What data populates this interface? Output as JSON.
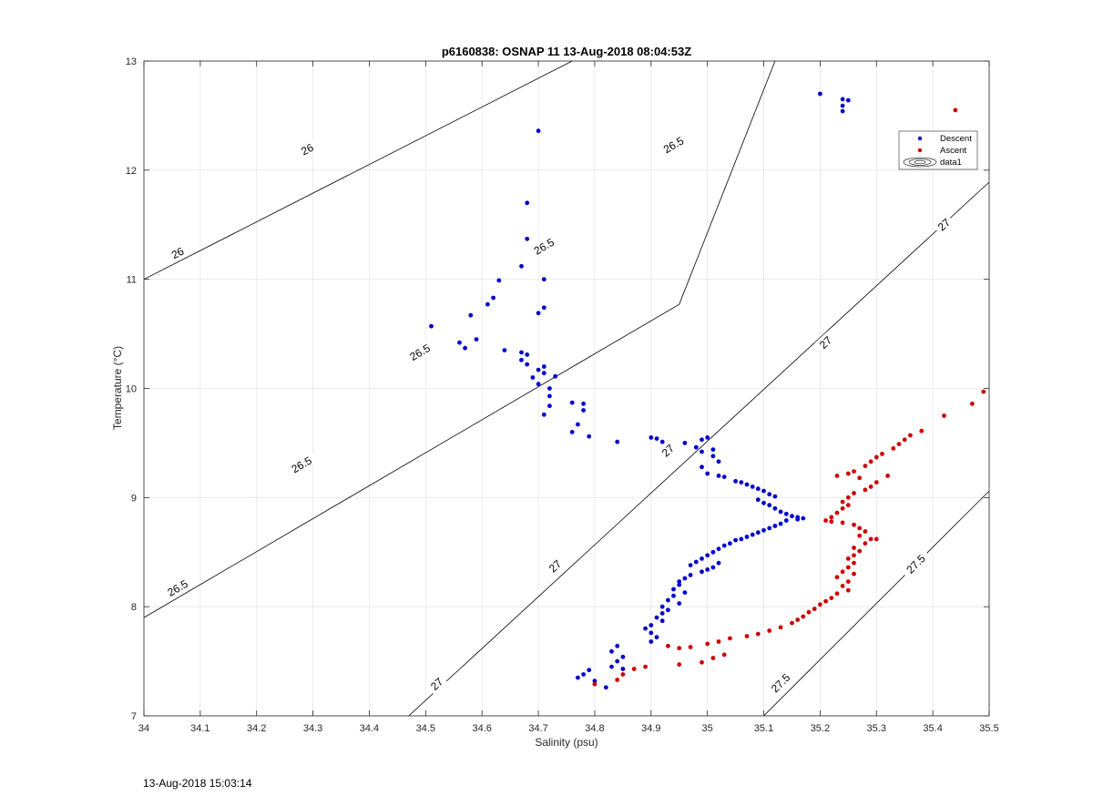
{
  "chart_data": {
    "type": "scatter",
    "title": "p6160838: OSNAP 11 13-Aug-2018 08:04:53Z",
    "xlabel": "Salinity (psu)",
    "ylabel": "Temperature (°C)",
    "xlim": [
      34,
      35.5
    ],
    "ylim": [
      7,
      13
    ],
    "x_ticks": [
      "34",
      "34.1",
      "34.2",
      "34.3",
      "34.4",
      "34.5",
      "34.6",
      "34.7",
      "34.8",
      "34.9",
      "35",
      "35.1",
      "35.2",
      "35.3",
      "35.4",
      "35.5"
    ],
    "y_ticks": [
      "7",
      "8",
      "9",
      "10",
      "11",
      "12",
      "13"
    ],
    "grid": true,
    "legend_placement": "top-right",
    "legend": [
      "Descent",
      "Ascent",
      "data1"
    ],
    "footer_timestamp": "13-Aug-2018 15:03:14",
    "series": [
      {
        "name": "Descent",
        "color": "#0000cc",
        "points": [
          [
            34.7,
            12.36
          ],
          [
            35.2,
            12.7
          ],
          [
            35.24,
            12.65
          ],
          [
            35.25,
            12.64
          ],
          [
            35.24,
            12.59
          ],
          [
            35.24,
            12.54
          ],
          [
            34.68,
            11.7
          ],
          [
            34.68,
            11.37
          ],
          [
            34.67,
            11.12
          ],
          [
            34.63,
            10.99
          ],
          [
            34.71,
            11.0
          ],
          [
            34.62,
            10.83
          ],
          [
            34.61,
            10.77
          ],
          [
            34.71,
            10.74
          ],
          [
            34.7,
            10.69
          ],
          [
            34.58,
            10.67
          ],
          [
            34.51,
            10.57
          ],
          [
            34.59,
            10.45
          ],
          [
            34.56,
            10.42
          ],
          [
            34.57,
            10.37
          ],
          [
            34.64,
            10.35
          ],
          [
            34.67,
            10.33
          ],
          [
            34.68,
            10.31
          ],
          [
            34.67,
            10.26
          ],
          [
            34.68,
            10.22
          ],
          [
            34.71,
            10.2
          ],
          [
            34.7,
            10.17
          ],
          [
            34.71,
            10.14
          ],
          [
            34.73,
            10.11
          ],
          [
            34.69,
            10.1
          ],
          [
            34.7,
            10.04
          ],
          [
            34.72,
            10.0
          ],
          [
            34.72,
            9.93
          ],
          [
            34.76,
            9.87
          ],
          [
            34.78,
            9.86
          ],
          [
            34.72,
            9.84
          ],
          [
            34.78,
            9.8
          ],
          [
            34.71,
            9.76
          ],
          [
            34.77,
            9.67
          ],
          [
            34.76,
            9.6
          ],
          [
            34.79,
            9.56
          ],
          [
            34.84,
            9.51
          ],
          [
            34.9,
            9.55
          ],
          [
            34.91,
            9.54
          ],
          [
            34.92,
            9.51
          ],
          [
            34.96,
            9.5
          ],
          [
            34.99,
            9.53
          ],
          [
            35.0,
            9.55
          ],
          [
            34.98,
            9.46
          ],
          [
            35.01,
            9.44
          ],
          [
            34.99,
            9.42
          ],
          [
            35.01,
            9.38
          ],
          [
            35.02,
            9.33
          ],
          [
            34.99,
            9.28
          ],
          [
            35.0,
            9.22
          ],
          [
            35.02,
            9.2
          ],
          [
            35.03,
            9.19
          ],
          [
            35.05,
            9.15
          ],
          [
            35.06,
            9.14
          ],
          [
            35.07,
            9.12
          ],
          [
            35.08,
            9.1
          ],
          [
            35.09,
            9.08
          ],
          [
            35.1,
            9.06
          ],
          [
            35.11,
            9.03
          ],
          [
            35.12,
            9.01
          ],
          [
            35.09,
            8.98
          ],
          [
            35.1,
            8.95
          ],
          [
            35.11,
            8.93
          ],
          [
            35.12,
            8.9
          ],
          [
            35.13,
            8.87
          ],
          [
            35.14,
            8.85
          ],
          [
            35.15,
            8.83
          ],
          [
            35.16,
            8.82
          ],
          [
            35.17,
            8.81
          ],
          [
            35.16,
            8.8
          ],
          [
            35.14,
            8.79
          ],
          [
            35.13,
            8.76
          ],
          [
            35.12,
            8.74
          ],
          [
            35.11,
            8.72
          ],
          [
            35.1,
            8.7
          ],
          [
            35.09,
            8.68
          ],
          [
            35.08,
            8.66
          ],
          [
            35.07,
            8.64
          ],
          [
            35.06,
            8.62
          ],
          [
            35.05,
            8.61
          ],
          [
            35.04,
            8.58
          ],
          [
            35.03,
            8.56
          ],
          [
            35.02,
            8.53
          ],
          [
            35.01,
            8.5
          ],
          [
            35.0,
            8.47
          ],
          [
            34.99,
            8.44
          ],
          [
            34.98,
            8.41
          ],
          [
            34.97,
            8.38
          ],
          [
            35.02,
            8.4
          ],
          [
            35.01,
            8.36
          ],
          [
            35.0,
            8.34
          ],
          [
            34.99,
            8.32
          ],
          [
            34.97,
            8.29
          ],
          [
            34.96,
            8.26
          ],
          [
            34.95,
            8.23
          ],
          [
            34.95,
            8.2
          ],
          [
            34.94,
            8.16
          ],
          [
            34.96,
            8.13
          ],
          [
            34.94,
            8.1
          ],
          [
            34.93,
            8.06
          ],
          [
            34.95,
            8.03
          ],
          [
            34.92,
            8.0
          ],
          [
            34.93,
            7.97
          ],
          [
            34.92,
            7.94
          ],
          [
            34.91,
            7.9
          ],
          [
            34.92,
            7.87
          ],
          [
            34.9,
            7.83
          ],
          [
            34.89,
            7.8
          ],
          [
            34.9,
            7.76
          ],
          [
            34.91,
            7.72
          ],
          [
            34.9,
            7.68
          ],
          [
            34.84,
            7.64
          ],
          [
            34.83,
            7.59
          ],
          [
            34.85,
            7.54
          ],
          [
            34.84,
            7.5
          ],
          [
            34.83,
            7.45
          ],
          [
            34.85,
            7.43
          ],
          [
            34.79,
            7.42
          ],
          [
            34.78,
            7.38
          ],
          [
            34.77,
            7.35
          ],
          [
            34.8,
            7.32
          ],
          [
            34.82,
            7.26
          ]
        ]
      },
      {
        "name": "Ascent",
        "color": "#cc0000",
        "points": [
          [
            35.44,
            12.55
          ],
          [
            35.49,
            9.97
          ],
          [
            35.47,
            9.86
          ],
          [
            35.42,
            9.75
          ],
          [
            35.38,
            9.61
          ],
          [
            35.36,
            9.57
          ],
          [
            35.35,
            9.53
          ],
          [
            35.34,
            9.49
          ],
          [
            35.33,
            9.45
          ],
          [
            35.31,
            9.4
          ],
          [
            35.3,
            9.37
          ],
          [
            35.29,
            9.33
          ],
          [
            35.28,
            9.29
          ],
          [
            35.26,
            9.24
          ],
          [
            35.25,
            9.22
          ],
          [
            35.23,
            9.2
          ],
          [
            35.27,
            9.18
          ],
          [
            35.32,
            9.2
          ],
          [
            35.3,
            9.14
          ],
          [
            35.29,
            9.1
          ],
          [
            35.28,
            9.07
          ],
          [
            35.26,
            9.04
          ],
          [
            35.25,
            9.0
          ],
          [
            35.24,
            8.96
          ],
          [
            35.25,
            8.93
          ],
          [
            35.24,
            8.9
          ],
          [
            35.23,
            8.86
          ],
          [
            35.22,
            8.82
          ],
          [
            35.21,
            8.79
          ],
          [
            35.22,
            8.78
          ],
          [
            35.24,
            8.77
          ],
          [
            35.26,
            8.75
          ],
          [
            35.27,
            8.72
          ],
          [
            35.28,
            8.69
          ],
          [
            35.27,
            8.65
          ],
          [
            35.29,
            8.62
          ],
          [
            35.3,
            8.62
          ],
          [
            35.28,
            8.58
          ],
          [
            35.26,
            8.54
          ],
          [
            35.27,
            8.51
          ],
          [
            35.26,
            8.47
          ],
          [
            35.25,
            8.44
          ],
          [
            35.26,
            8.4
          ],
          [
            35.25,
            8.36
          ],
          [
            35.24,
            8.32
          ],
          [
            35.26,
            8.3
          ],
          [
            35.23,
            8.27
          ],
          [
            35.25,
            8.23
          ],
          [
            35.24,
            8.19
          ],
          [
            35.25,
            8.15
          ],
          [
            35.23,
            8.12
          ],
          [
            35.22,
            8.08
          ],
          [
            35.21,
            8.05
          ],
          [
            35.2,
            8.02
          ],
          [
            35.19,
            7.98
          ],
          [
            35.18,
            7.95
          ],
          [
            35.17,
            7.91
          ],
          [
            35.16,
            7.88
          ],
          [
            35.15,
            7.85
          ],
          [
            35.13,
            7.81
          ],
          [
            35.11,
            7.78
          ],
          [
            35.09,
            7.75
          ],
          [
            35.07,
            7.73
          ],
          [
            35.04,
            7.71
          ],
          [
            35.02,
            7.68
          ],
          [
            35.0,
            7.66
          ],
          [
            34.97,
            7.63
          ],
          [
            34.95,
            7.62
          ],
          [
            34.93,
            7.64
          ],
          [
            35.03,
            7.56
          ],
          [
            35.01,
            7.53
          ],
          [
            34.99,
            7.49
          ],
          [
            34.95,
            7.47
          ],
          [
            34.89,
            7.45
          ],
          [
            34.87,
            7.43
          ],
          [
            34.85,
            7.38
          ],
          [
            34.84,
            7.33
          ],
          [
            34.8,
            7.29
          ]
        ]
      }
    ],
    "contours": [
      {
        "label": "26",
        "points": [
          [
            34.0,
            11.0
          ],
          [
            34.76,
            13.0
          ]
        ]
      },
      {
        "label": "26.5",
        "points": [
          [
            34.0,
            7.9
          ],
          [
            34.95,
            10.77
          ],
          [
            35.12,
            13.0
          ]
        ]
      },
      {
        "label": "27",
        "points": [
          [
            34.47,
            7.0
          ],
          [
            35.5,
            11.89
          ]
        ]
      },
      {
        "label": "27.5",
        "points": [
          [
            35.1,
            7.0
          ],
          [
            35.5,
            9.06
          ]
        ]
      }
    ],
    "contour_labels": [
      {
        "text": "26",
        "at": [
          34.29,
          12.19
        ]
      },
      {
        "text": "26",
        "at": [
          34.06,
          11.24
        ]
      },
      {
        "text": "26.5",
        "at": [
          34.94,
          12.23
        ]
      },
      {
        "text": "26.5",
        "at": [
          34.71,
          11.3
        ]
      },
      {
        "text": "26.5",
        "at": [
          34.49,
          10.33
        ]
      },
      {
        "text": "26.5",
        "at": [
          34.28,
          9.3
        ]
      },
      {
        "text": "26.5",
        "at": [
          34.06,
          8.17
        ]
      },
      {
        "text": "27",
        "at": [
          35.42,
          11.5
        ]
      },
      {
        "text": "27",
        "at": [
          35.21,
          10.42
        ]
      },
      {
        "text": "27",
        "at": [
          34.93,
          9.43
        ]
      },
      {
        "text": "27",
        "at": [
          34.73,
          8.37
        ]
      },
      {
        "text": "27",
        "at": [
          34.52,
          7.29
        ]
      },
      {
        "text": "27.5",
        "at": [
          35.37,
          8.39
        ]
      },
      {
        "text": "27.5",
        "at": [
          35.13,
          7.3
        ]
      }
    ]
  }
}
